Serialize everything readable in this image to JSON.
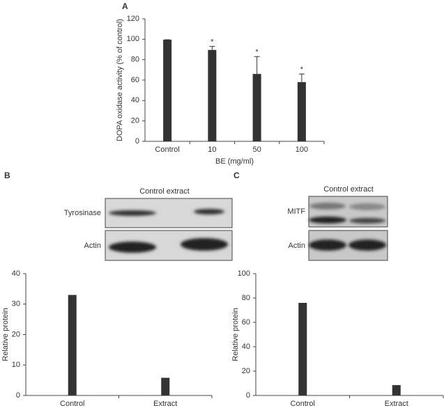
{
  "chart_data": [
    {
      "type": "bar",
      "panel_label": "A",
      "xlabel": "BE (mg/ml)",
      "ylabel": "DOPA oxidase activity (% of control)",
      "categories": [
        "Control",
        "10",
        "50",
        "100"
      ],
      "values": [
        99.5,
        89.5,
        66,
        58
      ],
      "errors": [
        0,
        3.5,
        17,
        8
      ],
      "annotations": [
        null,
        "*",
        "*",
        "*"
      ],
      "color": "#333333",
      "ylim": [
        0,
        120
      ],
      "yticks": [
        0,
        20,
        40,
        60,
        80,
        100,
        120
      ]
    },
    {
      "type": "bar",
      "panel_label": "B",
      "ylabel": "Relative protein",
      "blot": {
        "header": "Control extract",
        "rows": [
          "Tyrosinase",
          "Actin"
        ]
      },
      "categories": [
        "Control",
        "Extract"
      ],
      "values": [
        33,
        5.8
      ],
      "color": "#333333",
      "ylim": [
        0,
        40
      ],
      "yticks": [
        0,
        10,
        20,
        30,
        40
      ]
    },
    {
      "type": "bar",
      "panel_label": "C",
      "ylabel": "Relative protein",
      "blot": {
        "header": "Control extract",
        "rows": [
          "MITF",
          "Actin"
        ]
      },
      "categories": [
        "Control",
        "Extract"
      ],
      "values": [
        76,
        8.5
      ],
      "color": "#333333",
      "ylim": [
        0,
        100
      ],
      "yticks": [
        0,
        20,
        40,
        60,
        80,
        100
      ]
    }
  ]
}
